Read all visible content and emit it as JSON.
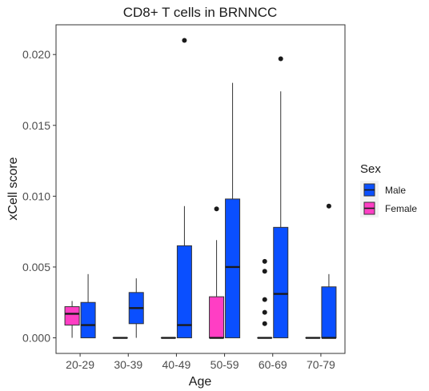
{
  "chart_data": {
    "type": "box",
    "title": "CD8+ T cells in BRNNCC",
    "xlabel": "Age",
    "ylabel": "xCell score",
    "ylim": [
      -0.0011,
      0.0221
    ],
    "yticks": [
      0,
      0.005,
      0.01,
      0.015,
      0.02
    ],
    "ytick_labels": [
      "0.000",
      "0.005",
      "0.010",
      "0.015",
      "0.020"
    ],
    "grid": false,
    "legend_position": "right",
    "legend_title": "Sex",
    "categories": [
      "20-29",
      "30-39",
      "40-49",
      "50-59",
      "60-69",
      "70-79"
    ],
    "series": [
      {
        "name": "Male",
        "color": "#0A4FFF",
        "boxes": [
          {
            "category": "20-29",
            "min": 0,
            "q1": 0,
            "median": 0.0009,
            "q3": 0.0025,
            "max": 0.0045,
            "outliers": []
          },
          {
            "category": "30-39",
            "min": 0,
            "q1": 0.001,
            "median": 0.0021,
            "q3": 0.0032,
            "max": 0.0042,
            "outliers": []
          },
          {
            "category": "40-49",
            "min": 0,
            "q1": 0,
            "median": 0.0009,
            "q3": 0.0065,
            "max": 0.0093,
            "outliers": [
              0.021
            ]
          },
          {
            "category": "50-59",
            "min": 0,
            "q1": 0,
            "median": 0.005,
            "q3": 0.0098,
            "max": 0.018,
            "outliers": []
          },
          {
            "category": "60-69",
            "min": 0,
            "q1": 0,
            "median": 0.0031,
            "q3": 0.0078,
            "max": 0.0174,
            "outliers": [
              0.0197
            ]
          },
          {
            "category": "70-79",
            "min": 0,
            "q1": 0,
            "median": 0,
            "q3": 0.0036,
            "max": 0.0045,
            "outliers": [
              0.0093
            ]
          }
        ]
      },
      {
        "name": "Female",
        "color": "#FF3EC4",
        "boxes": [
          {
            "category": "20-29",
            "min": 0,
            "q1": 0.0009,
            "median": 0.0017,
            "q3": 0.0022,
            "max": 0.0026,
            "outliers": []
          },
          {
            "category": "30-39",
            "min": 0,
            "q1": 0,
            "median": 0,
            "q3": 0,
            "max": 0,
            "outliers": []
          },
          {
            "category": "40-49",
            "min": 0,
            "q1": 0,
            "median": 0,
            "q3": 0,
            "max": 0,
            "outliers": []
          },
          {
            "category": "50-59",
            "min": 0,
            "q1": 0,
            "median": 0,
            "q3": 0.0029,
            "max": 0.0069,
            "outliers": [
              0.0091
            ]
          },
          {
            "category": "60-69",
            "min": 0,
            "q1": 0,
            "median": 0,
            "q3": 0,
            "max": 0,
            "outliers": [
              0.0054,
              0.0047,
              0.0027,
              0.0018,
              0.001
            ]
          },
          {
            "category": "70-79",
            "min": 0,
            "q1": 0,
            "median": 0,
            "q3": 0,
            "max": 0,
            "outliers": []
          }
        ]
      }
    ],
    "legend_items": [
      {
        "name": "Male",
        "color": "#0A4FFF"
      },
      {
        "name": "Female",
        "color": "#FF3EC4"
      }
    ]
  }
}
